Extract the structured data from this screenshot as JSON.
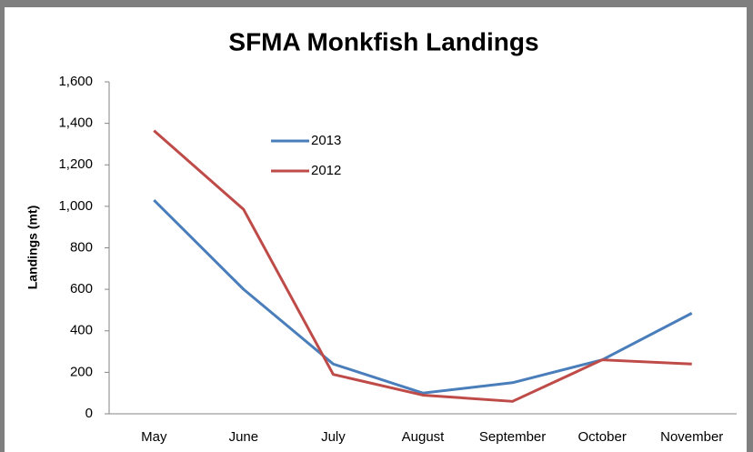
{
  "chart_data": {
    "type": "line",
    "title": "SFMA Monkfish Landings",
    "y_label": "Landings (mt)",
    "categories": [
      "May",
      "June",
      "July",
      "August",
      "September",
      "October",
      "November"
    ],
    "series": [
      {
        "name": "2013",
        "color": "#4a7ebb",
        "values": [
          1030,
          600,
          240,
          100,
          150,
          260,
          485
        ]
      },
      {
        "name": "2012",
        "color": "#be4b48",
        "values": [
          1365,
          985,
          190,
          90,
          60,
          260,
          240
        ]
      }
    ],
    "ylim": [
      0,
      1600
    ],
    "yticks": [
      0,
      200,
      400,
      600,
      800,
      {
        "value": 1000,
        "label": "1,000"
      },
      {
        "value": 1200,
        "label": "1,200"
      },
      {
        "value": 1400,
        "label": "1,400"
      },
      {
        "value": 1600,
        "label": "1,600"
      }
    ],
    "grid": false,
    "legend": "upper-left"
  }
}
